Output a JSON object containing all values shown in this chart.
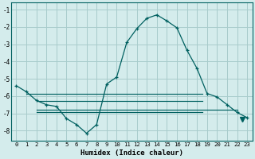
{
  "xlabel": "Humidex (Indice chaleur)",
  "bg_color": "#d4ecec",
  "grid_color": "#a8cccc",
  "line_color": "#006060",
  "x_ticks": [
    0,
    1,
    2,
    3,
    4,
    5,
    6,
    7,
    8,
    9,
    10,
    11,
    12,
    13,
    14,
    15,
    16,
    17,
    18,
    19,
    20,
    21,
    22,
    23
  ],
  "y_ticks": [
    -8,
    -7,
    -6,
    -5,
    -4,
    -3,
    -2,
    -1
  ],
  "ylim": [
    -8.6,
    -0.6
  ],
  "xlim": [
    -0.5,
    23.5
  ],
  "main_line": {
    "x": [
      0,
      1,
      2,
      3,
      4,
      5,
      6,
      7,
      8,
      9,
      10,
      11,
      12,
      13,
      14,
      15,
      16,
      17,
      18,
      19,
      20,
      21,
      22,
      23
    ],
    "y": [
      -5.4,
      -5.75,
      -6.25,
      -6.5,
      -6.6,
      -7.3,
      -7.65,
      -8.15,
      -7.65,
      -5.3,
      -4.9,
      -2.9,
      -2.1,
      -1.5,
      -1.3,
      -1.65,
      -2.05,
      -3.35,
      -4.4,
      -5.85,
      -6.05,
      -6.5,
      -6.95,
      -7.25
    ]
  },
  "flat_lines": [
    {
      "x": [
        1.0,
        18.5
      ],
      "y": [
        -5.85,
        -5.85
      ]
    },
    {
      "x": [
        2.0,
        18.5
      ],
      "y": [
        -6.3,
        -6.3
      ]
    },
    {
      "x": [
        2.0,
        22.0
      ],
      "y": [
        -6.8,
        -6.8
      ]
    },
    {
      "x": [
        2.0,
        18.5
      ],
      "y": [
        -6.95,
        -6.95
      ]
    }
  ],
  "triangle_x": 22.5,
  "triangle_y": -7.35
}
